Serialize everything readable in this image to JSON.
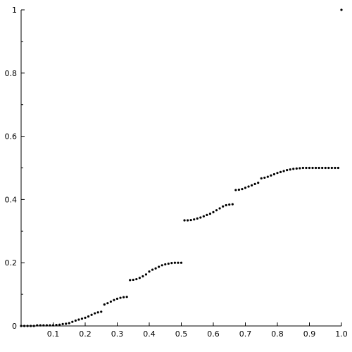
{
  "chart_data": {
    "type": "scatter",
    "title": "",
    "xlabel": "",
    "ylabel": "",
    "xlim": [
      0,
      1.0
    ],
    "ylim": [
      0,
      1.0
    ],
    "grid": false,
    "x_ticks": [
      {
        "value": 0.1,
        "label": "0.1"
      },
      {
        "value": 0.2,
        "label": "0.2"
      },
      {
        "value": 0.3,
        "label": "0.3"
      },
      {
        "value": 0.4,
        "label": "0.4"
      },
      {
        "value": 0.5,
        "label": "0.5"
      },
      {
        "value": 0.6,
        "label": "0.6"
      },
      {
        "value": 0.7,
        "label": "0.7"
      },
      {
        "value": 0.8,
        "label": "0.8"
      },
      {
        "value": 0.9,
        "label": "0.9"
      },
      {
        "value": 1.0,
        "label": "1.0"
      }
    ],
    "y_ticks": [
      {
        "value": 0,
        "label": "0"
      },
      {
        "value": 0.2,
        "label": "0.2"
      },
      {
        "value": 0.4,
        "label": "0.4"
      },
      {
        "value": 0.6,
        "label": "0.6"
      },
      {
        "value": 0.8,
        "label": "0.8"
      },
      {
        "value": 1,
        "label": "1"
      }
    ],
    "colors": {
      "points": "#000000",
      "axes": "#000000"
    },
    "series": [
      {
        "points": [
          [
            0.0,
            0.0
          ],
          [
            0.01,
            0.0
          ],
          [
            0.02,
            0.0
          ],
          [
            0.03,
            0.0
          ],
          [
            0.04,
            0.0
          ],
          [
            0.05,
            0.002
          ],
          [
            0.06,
            0.002
          ],
          [
            0.07,
            0.002
          ],
          [
            0.08,
            0.002
          ],
          [
            0.09,
            0.002
          ],
          [
            0.1,
            0.002
          ],
          [
            0.11,
            0.003
          ],
          [
            0.12,
            0.004
          ],
          [
            0.13,
            0.006
          ],
          [
            0.14,
            0.007
          ],
          [
            0.15,
            0.009
          ],
          [
            0.16,
            0.013
          ],
          [
            0.17,
            0.017
          ],
          [
            0.18,
            0.02
          ],
          [
            0.19,
            0.023
          ],
          [
            0.2,
            0.026
          ],
          [
            0.21,
            0.03
          ],
          [
            0.22,
            0.035
          ],
          [
            0.23,
            0.04
          ],
          [
            0.24,
            0.043
          ],
          [
            0.25,
            0.045
          ],
          [
            0.26,
            0.068
          ],
          [
            0.27,
            0.072
          ],
          [
            0.28,
            0.077
          ],
          [
            0.29,
            0.082
          ],
          [
            0.3,
            0.086
          ],
          [
            0.31,
            0.089
          ],
          [
            0.32,
            0.091
          ],
          [
            0.33,
            0.092
          ],
          [
            0.34,
            0.145
          ],
          [
            0.35,
            0.146
          ],
          [
            0.36,
            0.148
          ],
          [
            0.37,
            0.152
          ],
          [
            0.38,
            0.157
          ],
          [
            0.39,
            0.163
          ],
          [
            0.4,
            0.172
          ],
          [
            0.41,
            0.178
          ],
          [
            0.42,
            0.182
          ],
          [
            0.43,
            0.187
          ],
          [
            0.44,
            0.192
          ],
          [
            0.45,
            0.195
          ],
          [
            0.46,
            0.197
          ],
          [
            0.47,
            0.199
          ],
          [
            0.48,
            0.2
          ],
          [
            0.49,
            0.2
          ],
          [
            0.5,
            0.2
          ],
          [
            0.51,
            0.334
          ],
          [
            0.52,
            0.334
          ],
          [
            0.53,
            0.335
          ],
          [
            0.54,
            0.337
          ],
          [
            0.55,
            0.34
          ],
          [
            0.56,
            0.343
          ],
          [
            0.57,
            0.347
          ],
          [
            0.58,
            0.351
          ],
          [
            0.59,
            0.355
          ],
          [
            0.6,
            0.36
          ],
          [
            0.61,
            0.366
          ],
          [
            0.62,
            0.372
          ],
          [
            0.63,
            0.378
          ],
          [
            0.64,
            0.382
          ],
          [
            0.65,
            0.384
          ],
          [
            0.66,
            0.385
          ],
          [
            0.67,
            0.43
          ],
          [
            0.68,
            0.431
          ],
          [
            0.69,
            0.433
          ],
          [
            0.7,
            0.437
          ],
          [
            0.71,
            0.441
          ],
          [
            0.72,
            0.445
          ],
          [
            0.73,
            0.449
          ],
          [
            0.74,
            0.453
          ],
          [
            0.75,
            0.467
          ],
          [
            0.76,
            0.469
          ],
          [
            0.77,
            0.472
          ],
          [
            0.78,
            0.476
          ],
          [
            0.79,
            0.48
          ],
          [
            0.8,
            0.484
          ],
          [
            0.81,
            0.487
          ],
          [
            0.82,
            0.49
          ],
          [
            0.83,
            0.493
          ],
          [
            0.84,
            0.495
          ],
          [
            0.85,
            0.497
          ],
          [
            0.86,
            0.498
          ],
          [
            0.87,
            0.499
          ],
          [
            0.88,
            0.5
          ],
          [
            0.89,
            0.5
          ],
          [
            0.9,
            0.5
          ],
          [
            0.91,
            0.5
          ],
          [
            0.92,
            0.5
          ],
          [
            0.93,
            0.5
          ],
          [
            0.94,
            0.5
          ],
          [
            0.95,
            0.5
          ],
          [
            0.96,
            0.5
          ],
          [
            0.97,
            0.5
          ],
          [
            0.98,
            0.5
          ],
          [
            0.99,
            0.5
          ],
          [
            1.0,
            1.0
          ]
        ]
      }
    ]
  }
}
